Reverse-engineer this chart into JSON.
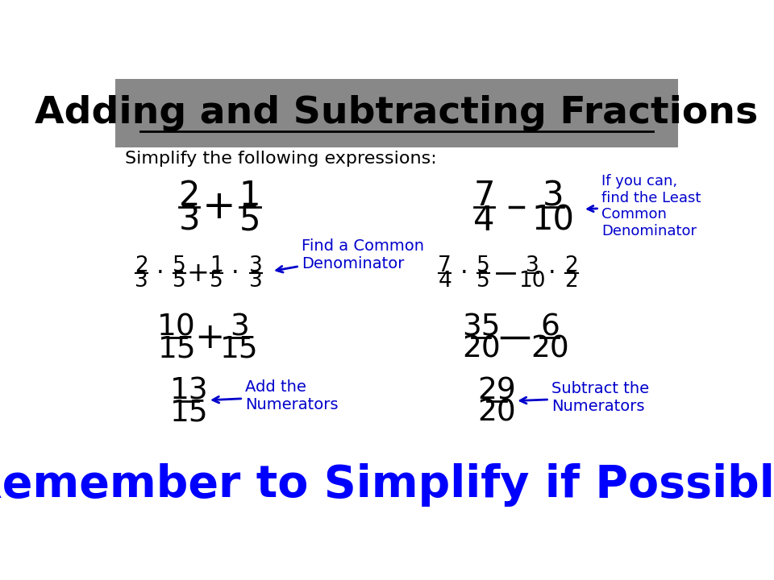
{
  "title": "Adding and Subtracting Fractions",
  "subtitle": "Simplify the following expressions:",
  "background_color": "#ffffff",
  "header_bg_color": "#888888",
  "header_text_color": "#000000",
  "title_fontsize": 34,
  "subtitle_fontsize": 16,
  "blue_annotation_color": "#0000CC",
  "black_text_color": "#000000",
  "remember_text": "Remember to Simplify if Possible!",
  "remember_color": "#0000FF",
  "remember_fontsize": 40,
  "annotation_find_common": "Find a Common\nDenominator",
  "annotation_lcm": "If you can,\nfind the Least\nCommon\nDenominator",
  "annotation_add_num": "Add the\nNumerators",
  "annotation_sub_num": "Subtract the\nNumerators"
}
